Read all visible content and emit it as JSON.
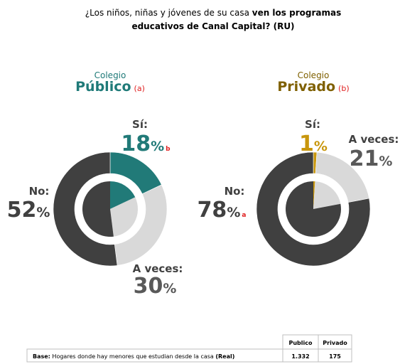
{
  "title_lines": [
    [
      {
        "text": "¿Los niños, niñas y jóvenes de su casa ",
        "bold": false
      },
      {
        "text": "ven los  programas",
        "bold": true
      }
    ],
    [
      {
        "text": "educativos de Canal Capital? (RU)",
        "bold": true
      }
    ]
  ],
  "chart_data": [
    {
      "type": "pie",
      "subtitle": "Colegio",
      "title": "Público",
      "title_tag": "(a)",
      "title_color": "#1f7a78",
      "categories": [
        "Sí:",
        "A veces:",
        "No:"
      ],
      "values": [
        18,
        30,
        52
      ],
      "unit": "%",
      "sig_labels": [
        "b",
        null,
        null
      ],
      "colors": [
        "#217a78",
        "#d9d9d9",
        "#404040"
      ],
      "label_colors": [
        "#217a78",
        "#595959",
        "#404040"
      ]
    },
    {
      "type": "pie",
      "subtitle": "Colegio",
      "title": "Privado",
      "title_tag": "(b)",
      "title_color": "#7f6000",
      "categories": [
        "Sí:",
        "A veces:",
        "No:"
      ],
      "values": [
        1,
        21,
        78
      ],
      "unit": "%",
      "sig_labels": [
        null,
        null,
        "a"
      ],
      "colors": [
        "#c8960c",
        "#d9d9d9",
        "#404040"
      ],
      "label_colors": [
        "#c8960c",
        "#595959",
        "#404040"
      ]
    }
  ],
  "table": {
    "header": [
      "Publico",
      "Privado"
    ],
    "row": {
      "label_parts": [
        {
          "text": "Base:",
          "bold": true
        },
        {
          "text": " Hogares donde hay menores que estudian desde la casa ",
          "bold": false
        },
        {
          "text": "(Real)",
          "bold": true
        }
      ],
      "values": [
        "1.332",
        "175"
      ]
    }
  }
}
